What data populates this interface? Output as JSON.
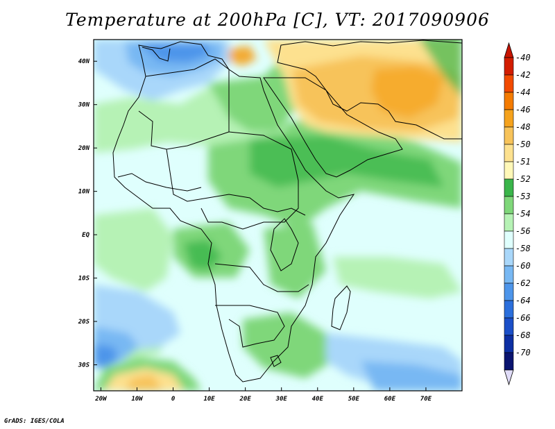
{
  "title": "Temperature at 200hPa [C], VT: 2017090906",
  "footer": "GrADS: IGES/COLA",
  "map": {
    "projection": "latlon",
    "lon_range": [
      -22,
      80
    ],
    "lat_range": [
      -36,
      45
    ],
    "lon_ticks": [
      {
        "lon": -20,
        "label": "20W"
      },
      {
        "lon": -10,
        "label": "10W"
      },
      {
        "lon": 0,
        "label": "0"
      },
      {
        "lon": 10,
        "label": "10E"
      },
      {
        "lon": 20,
        "label": "20E"
      },
      {
        "lon": 30,
        "label": "30E"
      },
      {
        "lon": 40,
        "label": "40E"
      },
      {
        "lon": 50,
        "label": "50E"
      },
      {
        "lon": 60,
        "label": "60E"
      },
      {
        "lon": 70,
        "label": "70E"
      }
    ],
    "lat_ticks": [
      {
        "lat": 40,
        "label": "40N"
      },
      {
        "lat": 30,
        "label": "30N"
      },
      {
        "lat": 20,
        "label": "20N"
      },
      {
        "lat": 10,
        "label": "10N"
      },
      {
        "lat": 0,
        "label": "EQ"
      },
      {
        "lat": -10,
        "label": "10S"
      },
      {
        "lat": -20,
        "label": "20S"
      },
      {
        "lat": -30,
        "label": "30S"
      }
    ],
    "variable": "Temperature at 200hPa",
    "units": "C"
  },
  "colorbar": {
    "levels": [
      {
        "label": "-40",
        "color": "#d21d00"
      },
      {
        "label": "-42",
        "color": "#f24a00"
      },
      {
        "label": "-44",
        "color": "#f47b00"
      },
      {
        "label": "-46",
        "color": "#f5a21d"
      },
      {
        "label": "-48",
        "color": "#f7c35a"
      },
      {
        "label": "-50",
        "color": "#fde18f"
      },
      {
        "label": "-51",
        "color": "#fff8b8"
      },
      {
        "label": "-52",
        "color": "#3ab54a"
      },
      {
        "label": "-53",
        "color": "#7fd77a"
      },
      {
        "label": "-54",
        "color": "#b6f2b5"
      },
      {
        "label": "-56",
        "color": "#dffffd"
      },
      {
        "label": "-58",
        "color": "#a9d7fa"
      },
      {
        "label": "-60",
        "color": "#78b8f3"
      },
      {
        "label": "-62",
        "color": "#4d95ea"
      },
      {
        "label": "-64",
        "color": "#2b6fdc"
      },
      {
        "label": "-66",
        "color": "#1b4fc8"
      },
      {
        "label": "-68",
        "color": "#0d2fa3"
      },
      {
        "label": "-70",
        "color": "#0a1470"
      }
    ],
    "top_arrow_color": "#c81400",
    "bottom_arrow_color": "#e0dcf8"
  },
  "regions": [
    {
      "name": "cold-northwest",
      "color": "#4d95ea",
      "lons": [
        -10,
        8
      ],
      "lats": [
        35,
        44
      ]
    },
    {
      "name": "cold-southwest",
      "color": "#4d95ea",
      "lons": [
        -22,
        -14
      ],
      "lats": [
        -35,
        -31
      ]
    },
    {
      "name": "warm-middle-east",
      "color": "#f7c35a",
      "lons": [
        37,
        80
      ],
      "lats": [
        20,
        45
      ]
    },
    {
      "name": "warm-southwest-corner",
      "color": "#f7c35a",
      "lons": [
        -13,
        -3
      ],
      "lats": [
        -36,
        -33
      ]
    }
  ]
}
